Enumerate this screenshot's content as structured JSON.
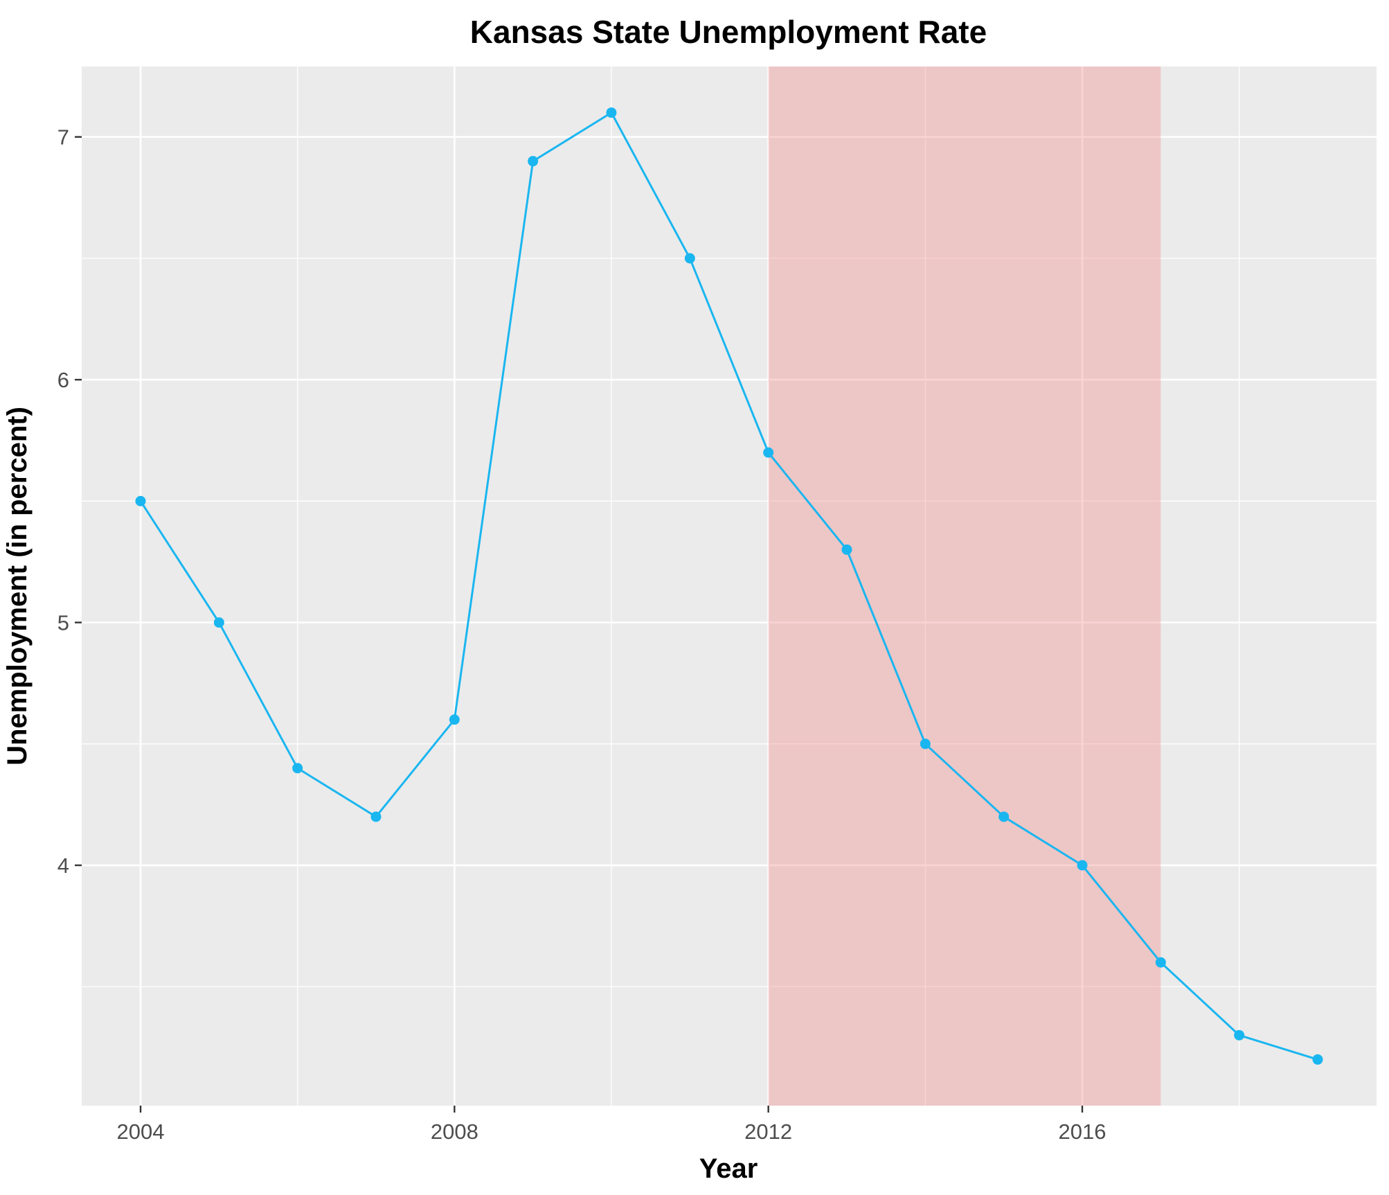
{
  "chart_data": {
    "type": "line",
    "title": "Kansas State Unemployment Rate",
    "xlabel": "Year",
    "ylabel": "Unemployment (in percent)",
    "x": [
      2004,
      2005,
      2006,
      2007,
      2008,
      2009,
      2010,
      2011,
      2012,
      2013,
      2014,
      2015,
      2016,
      2017,
      2018,
      2019
    ],
    "series": [
      {
        "values": [
          5.5,
          5.0,
          4.4,
          4.2,
          4.6,
          6.9,
          7.1,
          6.5,
          5.7,
          5.3,
          4.5,
          4.2,
          4.0,
          3.6,
          3.3,
          3.2
        ]
      }
    ],
    "x_ticks": [
      "2004",
      "2008",
      "2012",
      "2016"
    ],
    "y_ticks": [
      "4",
      "5",
      "6",
      "7"
    ],
    "xlim": [
      2003.25,
      2019.75
    ],
    "ylim": [
      3.01,
      7.29
    ],
    "shaded_region": {
      "x_start": 2012,
      "x_end": 2017,
      "color": "#f08080"
    },
    "line_color": "#1ab6f0",
    "panel_background": "#ebebeb",
    "grid_color": "#ffffff",
    "grid": true,
    "legend": "none"
  }
}
